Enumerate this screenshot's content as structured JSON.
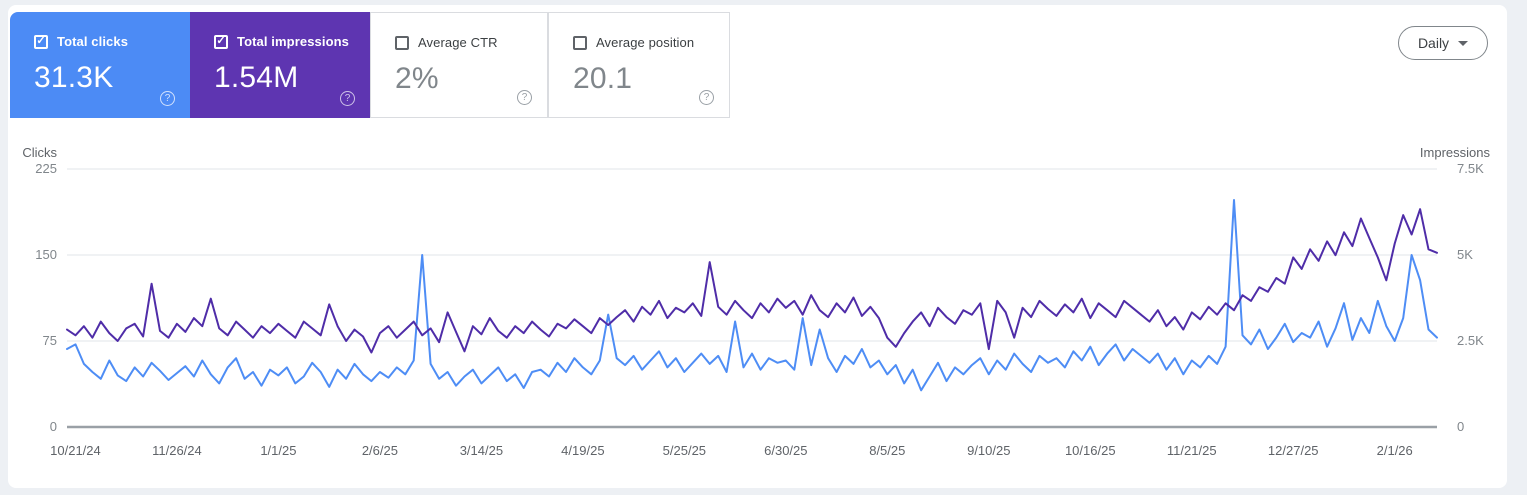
{
  "cards": [
    {
      "label": "Total clicks",
      "value": "31.3K",
      "checked": true,
      "style": {
        "bg": "#4c8bf5",
        "fg": "#ffffff",
        "value_color": "#ffffff",
        "checkbox_color": "#ffffff",
        "help_color": "rgba(255,255,255,0.75)"
      }
    },
    {
      "label": "Total impressions",
      "value": "1.54M",
      "checked": true,
      "style": {
        "bg": "#5e35b1",
        "fg": "#ffffff",
        "value_color": "#ffffff",
        "checkbox_color": "#ffffff",
        "help_color": "rgba(255,255,255,0.7)"
      }
    },
    {
      "label": "Average CTR",
      "value": "2%",
      "checked": false,
      "style": {
        "bg": "#ffffff",
        "fg": "#3c4043",
        "value_color": "#80868b",
        "checkbox_color": "#5f6368",
        "help_color": "#9aa0a6"
      }
    },
    {
      "label": "Average position",
      "value": "20.1",
      "checked": false,
      "style": {
        "bg": "#ffffff",
        "fg": "#3c4043",
        "value_color": "#80868b",
        "checkbox_color": "#5f6368",
        "help_color": "#9aa0a6"
      }
    }
  ],
  "granularity": {
    "label": "Daily"
  },
  "icons": {
    "check_glyph": "✓",
    "help_glyph": "?"
  },
  "colors": {
    "page_bg": "#edf0f4",
    "panel_bg": "#ffffff",
    "gridline": "#e8eaed",
    "axis_line": "#9aa0a6",
    "clicks_line": "#4e8df5",
    "impressions_line": "#4f2da8"
  },
  "chart_data": {
    "type": "line",
    "note": "Daily values estimated from pixels; series sampled every 3 days from 10/18/24 to 2/16/26.",
    "x_axis": {
      "tick_labels": [
        "10/21/24",
        "11/26/24",
        "1/1/25",
        "2/6/25",
        "3/14/25",
        "4/19/25",
        "5/25/25",
        "6/30/25",
        "8/5/25",
        "9/10/25",
        "10/16/25",
        "11/21/25",
        "12/27/25",
        "2/1/26"
      ]
    },
    "left_axis": {
      "title": "Clicks",
      "tick_labels": [
        "225",
        "150",
        "75",
        "0"
      ],
      "tick_values": [
        225,
        150,
        75,
        0
      ],
      "range": [
        0,
        225
      ]
    },
    "right_axis": {
      "title": "Impressions",
      "tick_labels": [
        "7.5K",
        "5K",
        "2.5K",
        "0"
      ],
      "tick_values": [
        7500,
        5000,
        2500,
        0
      ],
      "range": [
        0,
        7500
      ]
    },
    "grid": "horizontal",
    "legend": "none",
    "series": [
      {
        "name": "Clicks",
        "axis": "left",
        "color": "#4e8df5",
        "values": [
          68,
          72,
          55,
          48,
          42,
          58,
          45,
          40,
          52,
          44,
          56,
          49,
          41,
          47,
          53,
          44,
          58,
          46,
          38,
          52,
          60,
          42,
          48,
          36,
          50,
          45,
          52,
          38,
          44,
          56,
          48,
          35,
          50,
          42,
          55,
          46,
          40,
          48,
          43,
          52,
          46,
          58,
          150,
          55,
          42,
          48,
          36,
          44,
          50,
          38,
          45,
          52,
          40,
          46,
          34,
          48,
          50,
          44,
          56,
          48,
          60,
          52,
          46,
          58,
          98,
          60,
          54,
          62,
          50,
          58,
          66,
          52,
          60,
          48,
          56,
          64,
          55,
          62,
          48,
          92,
          52,
          64,
          50,
          60,
          56,
          58,
          50,
          95,
          54,
          85,
          60,
          48,
          62,
          55,
          68,
          52,
          58,
          46,
          54,
          38,
          50,
          32,
          44,
          56,
          40,
          52,
          46,
          54,
          60,
          46,
          58,
          50,
          64,
          55,
          48,
          62,
          56,
          60,
          52,
          66,
          58,
          70,
          54,
          64,
          72,
          58,
          68,
          62,
          56,
          64,
          50,
          60,
          46,
          58,
          52,
          62,
          55,
          70,
          198,
          80,
          72,
          85,
          68,
          78,
          90,
          74,
          82,
          78,
          92,
          70,
          86,
          108,
          76,
          95,
          82,
          110,
          88,
          75,
          95,
          150,
          128,
          85,
          78
        ]
      },
      {
        "name": "Impressions",
        "axis": "right",
        "color": "#4f2da8",
        "values": [
          2830,
          2665,
          2930,
          2595,
          3065,
          2730,
          2500,
          2865,
          3000,
          2630,
          4165,
          2795,
          2595,
          3000,
          2765,
          3165,
          2930,
          3730,
          2865,
          2665,
          3065,
          2830,
          2595,
          2930,
          2730,
          3000,
          2795,
          2595,
          3065,
          2865,
          2665,
          3565,
          2930,
          2500,
          2830,
          2630,
          2165,
          2730,
          2930,
          2595,
          2830,
          3065,
          2665,
          2865,
          2465,
          3330,
          2765,
          2200,
          2930,
          2695,
          3165,
          2795,
          2595,
          2930,
          2730,
          3065,
          2830,
          2630,
          3000,
          2865,
          3130,
          2930,
          2730,
          3165,
          2965,
          3195,
          3395,
          3065,
          3495,
          3265,
          3665,
          3165,
          3465,
          3330,
          3595,
          3230,
          4795,
          3495,
          3265,
          3665,
          3395,
          3165,
          3595,
          3330,
          3730,
          3465,
          3665,
          3265,
          3830,
          3395,
          3195,
          3595,
          3330,
          3765,
          3230,
          3495,
          3165,
          2595,
          2330,
          2730,
          3065,
          3330,
          2930,
          3465,
          3195,
          3000,
          3395,
          3265,
          3595,
          2265,
          3665,
          3330,
          2595,
          3465,
          3195,
          3665,
          3430,
          3230,
          3565,
          3330,
          3730,
          3165,
          3595,
          3395,
          3195,
          3665,
          3465,
          3265,
          3065,
          3395,
          2930,
          3195,
          2830,
          3330,
          3130,
          3495,
          3265,
          3595,
          3395,
          3830,
          3665,
          4065,
          3930,
          4330,
          4165,
          4930,
          4595,
          5165,
          4830,
          5395,
          4995,
          5660,
          5260,
          6060,
          5495,
          4930,
          4265,
          5330,
          6160,
          5595,
          6330,
          5165,
          5065
        ]
      }
    ]
  }
}
